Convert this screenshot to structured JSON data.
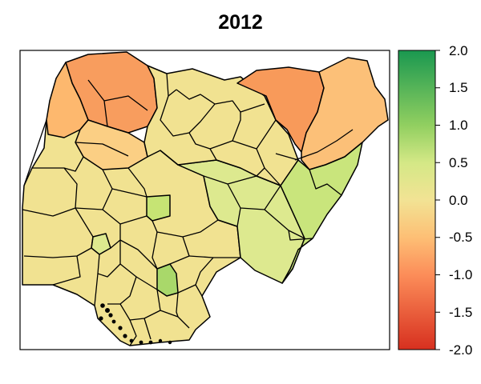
{
  "title": "2012",
  "legend": {
    "tick_labels": [
      "2.0",
      "1.5",
      "1.0",
      "0.5",
      "0.0",
      "-0.5",
      "-1.0",
      "-1.5",
      "-2.0"
    ],
    "tick_values": [
      2.0,
      1.5,
      1.0,
      0.5,
      0.0,
      -0.5,
      -1.0,
      -1.5,
      -2.0
    ],
    "min": -2.0,
    "max": 2.0,
    "color_stops": [
      {
        "value": -2.0,
        "color": "#d7301f"
      },
      {
        "value": -1.0,
        "color": "#fc8d59"
      },
      {
        "value": -0.5,
        "color": "#fdbf75"
      },
      {
        "value": 0.0,
        "color": "#f2e394"
      },
      {
        "value": 0.5,
        "color": "#d4e886"
      },
      {
        "value": 1.0,
        "color": "#91cf60"
      },
      {
        "value": 2.0,
        "color": "#1a9850"
      }
    ]
  },
  "colors": {
    "border": "#000000",
    "background": "#ffffff"
  }
}
